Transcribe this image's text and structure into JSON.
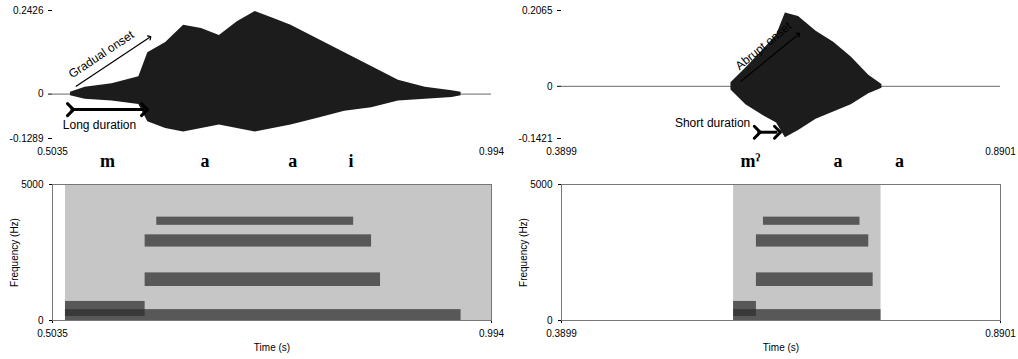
{
  "chart_data": [
    {
      "type": "area",
      "x": [
        0.5236,
        0.54,
        0.57,
        0.6,
        0.61,
        0.63,
        0.65,
        0.67,
        0.69,
        0.71,
        0.73,
        0.75,
        0.77,
        0.8,
        0.83,
        0.86,
        0.89,
        0.92,
        0.95,
        0.96
      ],
      "upper": [
        0.005,
        0.02,
        0.03,
        0.05,
        0.12,
        0.15,
        0.2,
        0.19,
        0.17,
        0.21,
        0.24,
        0.22,
        0.2,
        0.16,
        0.12,
        0.08,
        0.04,
        0.02,
        0.01,
        0.005
      ],
      "lower": [
        -0.005,
        -0.015,
        -0.02,
        -0.03,
        -0.08,
        -0.1,
        -0.11,
        -0.1,
        -0.09,
        -0.1,
        -0.11,
        -0.1,
        -0.09,
        -0.07,
        -0.05,
        -0.04,
        -0.02,
        -0.015,
        -0.01,
        -0.005
      ],
      "baseline": 0,
      "xlim": [
        0.5035,
        0.994
      ],
      "xticks": [
        0.5035,
        0.994
      ],
      "ylim": [
        -0.1289,
        0.2426
      ],
      "yticks": [
        -0.1289,
        0,
        0.2426
      ],
      "segments": [
        {
          "text": "m",
          "x": 0.565
        },
        {
          "text": "a",
          "x": 0.674
        },
        {
          "text": "a",
          "x": 0.772
        },
        {
          "text": "i",
          "x": 0.837
        }
      ],
      "annotations": [
        {
          "text": "Gradual onset",
          "x": 0.558,
          "y": 0.115,
          "arrow": {
            "x1": 0.5295,
            "y1": 0.022,
            "x2": 0.6122,
            "y2": 0.165,
            "marker": "end"
          }
        },
        {
          "text": "Long duration",
          "x": 0.556,
          "y": -0.09,
          "arrow": {
            "x1": 0.5236,
            "y1": -0.045,
            "x2": 0.6063,
            "y2": -0.045,
            "marker": "both"
          }
        }
      ]
    },
    {
      "type": "spectrogram",
      "extent": [
        0.518,
        0.994
      ],
      "bands": [
        {
          "x": [
            0.518,
            0.96
          ],
          "y": [
            0,
            400
          ]
        },
        {
          "x": [
            0.518,
            0.607
          ],
          "y": [
            150,
            700
          ]
        },
        {
          "x": [
            0.607,
            0.87
          ],
          "y": [
            1250,
            1750
          ]
        },
        {
          "x": [
            0.607,
            0.86
          ],
          "y": [
            2700,
            3150
          ]
        },
        {
          "x": [
            0.62,
            0.84
          ],
          "y": [
            3500,
            3800
          ]
        }
      ],
      "xlim": [
        0.5035,
        0.994
      ],
      "xticks": [
        0.5035,
        0.994
      ],
      "ylim": [
        0,
        5000
      ],
      "yticks": [
        0,
        5000
      ],
      "xlabel": "Time (s)",
      "ylabel": "Frequency (Hz)"
    },
    {
      "type": "area",
      "x": [
        0.583,
        0.6,
        0.62,
        0.635,
        0.645,
        0.66,
        0.68,
        0.7,
        0.72,
        0.74,
        0.755
      ],
      "upper": [
        0.01,
        0.05,
        0.1,
        0.14,
        0.2,
        0.19,
        0.15,
        0.12,
        0.08,
        0.03,
        0.005
      ],
      "lower": [
        -0.01,
        -0.05,
        -0.08,
        -0.1,
        -0.14,
        -0.12,
        -0.09,
        -0.07,
        -0.05,
        -0.02,
        -0.005
      ],
      "baseline": 0,
      "xlim": [
        0.3899,
        0.8901
      ],
      "xticks": [
        0.3899,
        0.8901
      ],
      "ylim": [
        -0.1421,
        0.2065
      ],
      "yticks": [
        -0.1421,
        0,
        0.2065
      ],
      "segments": [
        {
          "text": "mˀ",
          "x": 0.605
        },
        {
          "text": "a",
          "x": 0.705
        },
        {
          "text": "a",
          "x": 0.775
        }
      ],
      "annotations": [
        {
          "text": "Abrupt onset",
          "x": 0.62,
          "y": 0.11,
          "arrow": {
            "x1": 0.594,
            "y1": 0.013,
            "x2": 0.66,
            "y2": 0.142,
            "marker": "end"
          }
        },
        {
          "text": "Short duration",
          "x": 0.605,
          "y": -0.1,
          "arrow": {
            "x1": 0.613,
            "y1": -0.125,
            "x2": 0.636,
            "y2": -0.125,
            "marker": "both"
          }
        }
      ]
    },
    {
      "type": "spectrogram",
      "extent": [
        0.586,
        0.754
      ],
      "bands": [
        {
          "x": [
            0.586,
            0.754
          ],
          "y": [
            0,
            400
          ]
        },
        {
          "x": [
            0.586,
            0.612
          ],
          "y": [
            150,
            700
          ]
        },
        {
          "x": [
            0.612,
            0.745
          ],
          "y": [
            1250,
            1750
          ]
        },
        {
          "x": [
            0.612,
            0.74
          ],
          "y": [
            2700,
            3150
          ]
        },
        {
          "x": [
            0.62,
            0.73
          ],
          "y": [
            3500,
            3800
          ]
        }
      ],
      "xlim": [
        0.3899,
        0.8901
      ],
      "xticks": [
        0.3899,
        0.8901
      ],
      "ylim": [
        0,
        5000
      ],
      "yticks": [
        0,
        5000
      ],
      "xlabel": "Time (s)",
      "ylabel": "Frequency (Hz)"
    }
  ]
}
